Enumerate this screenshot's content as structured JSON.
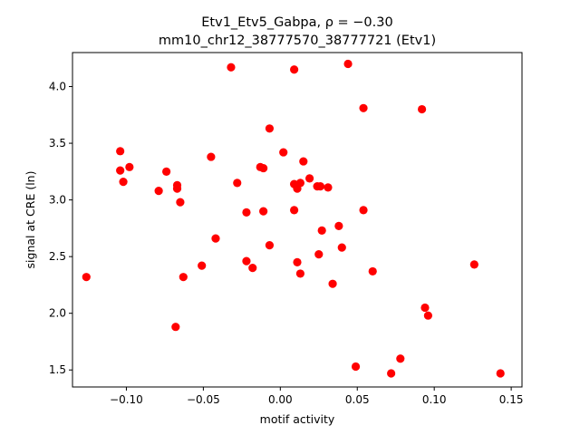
{
  "chart_data": {
    "type": "scatter",
    "title_line1": "Etv1_Etv5_Gabpa, ρ = −0.30",
    "title_line2": "mm10_chr12_38777570_38777721 (Etv1)",
    "xlabel": "motif activity",
    "ylabel": "signal at CRE (ln)",
    "xlim": [
      -0.135,
      0.157
    ],
    "ylim": [
      1.35,
      4.3
    ],
    "xticks": [
      -0.1,
      -0.05,
      0.0,
      0.05,
      0.1,
      0.15
    ],
    "xtick_labels": [
      "−0.10",
      "−0.05",
      "0.00",
      "0.05",
      "0.10",
      "0.15"
    ],
    "yticks": [
      1.5,
      2.0,
      2.5,
      3.0,
      3.5,
      4.0
    ],
    "ytick_labels": [
      "1.5",
      "2.0",
      "2.5",
      "3.0",
      "3.5",
      "4.0"
    ],
    "grid": false,
    "marker_color": "#ff0000",
    "points": [
      {
        "x": -0.126,
        "y": 2.32
      },
      {
        "x": -0.104,
        "y": 3.43
      },
      {
        "x": -0.104,
        "y": 3.26
      },
      {
        "x": -0.102,
        "y": 3.16
      },
      {
        "x": -0.098,
        "y": 3.29
      },
      {
        "x": -0.079,
        "y": 3.08
      },
      {
        "x": -0.074,
        "y": 3.25
      },
      {
        "x": -0.068,
        "y": 1.88
      },
      {
        "x": -0.067,
        "y": 3.13
      },
      {
        "x": -0.067,
        "y": 3.1
      },
      {
        "x": -0.065,
        "y": 2.98
      },
      {
        "x": -0.063,
        "y": 2.32
      },
      {
        "x": -0.051,
        "y": 2.42
      },
      {
        "x": -0.045,
        "y": 3.38
      },
      {
        "x": -0.042,
        "y": 2.66
      },
      {
        "x": -0.032,
        "y": 4.17
      },
      {
        "x": -0.028,
        "y": 3.15
      },
      {
        "x": -0.022,
        "y": 2.46
      },
      {
        "x": -0.022,
        "y": 2.89
      },
      {
        "x": -0.018,
        "y": 2.4
      },
      {
        "x": -0.013,
        "y": 3.29
      },
      {
        "x": -0.011,
        "y": 3.28
      },
      {
        "x": -0.011,
        "y": 2.9
      },
      {
        "x": -0.007,
        "y": 3.63
      },
      {
        "x": -0.007,
        "y": 2.6
      },
      {
        "x": 0.002,
        "y": 3.42
      },
      {
        "x": 0.009,
        "y": 4.15
      },
      {
        "x": 0.009,
        "y": 3.14
      },
      {
        "x": 0.009,
        "y": 2.91
      },
      {
        "x": 0.011,
        "y": 3.1
      },
      {
        "x": 0.011,
        "y": 2.45
      },
      {
        "x": 0.013,
        "y": 3.15
      },
      {
        "x": 0.013,
        "y": 2.35
      },
      {
        "x": 0.015,
        "y": 3.34
      },
      {
        "x": 0.019,
        "y": 3.19
      },
      {
        "x": 0.024,
        "y": 3.12
      },
      {
        "x": 0.025,
        "y": 2.52
      },
      {
        "x": 0.026,
        "y": 3.12
      },
      {
        "x": 0.027,
        "y": 2.73
      },
      {
        "x": 0.031,
        "y": 3.11
      },
      {
        "x": 0.034,
        "y": 2.26
      },
      {
        "x": 0.038,
        "y": 2.77
      },
      {
        "x": 0.04,
        "y": 2.58
      },
      {
        "x": 0.044,
        "y": 4.2
      },
      {
        "x": 0.049,
        "y": 1.53
      },
      {
        "x": 0.054,
        "y": 3.81
      },
      {
        "x": 0.054,
        "y": 2.91
      },
      {
        "x": 0.06,
        "y": 2.37
      },
      {
        "x": 0.072,
        "y": 1.47
      },
      {
        "x": 0.078,
        "y": 1.6
      },
      {
        "x": 0.092,
        "y": 3.8
      },
      {
        "x": 0.094,
        "y": 2.05
      },
      {
        "x": 0.096,
        "y": 1.98
      },
      {
        "x": 0.126,
        "y": 2.43
      },
      {
        "x": 0.143,
        "y": 1.47
      }
    ]
  }
}
